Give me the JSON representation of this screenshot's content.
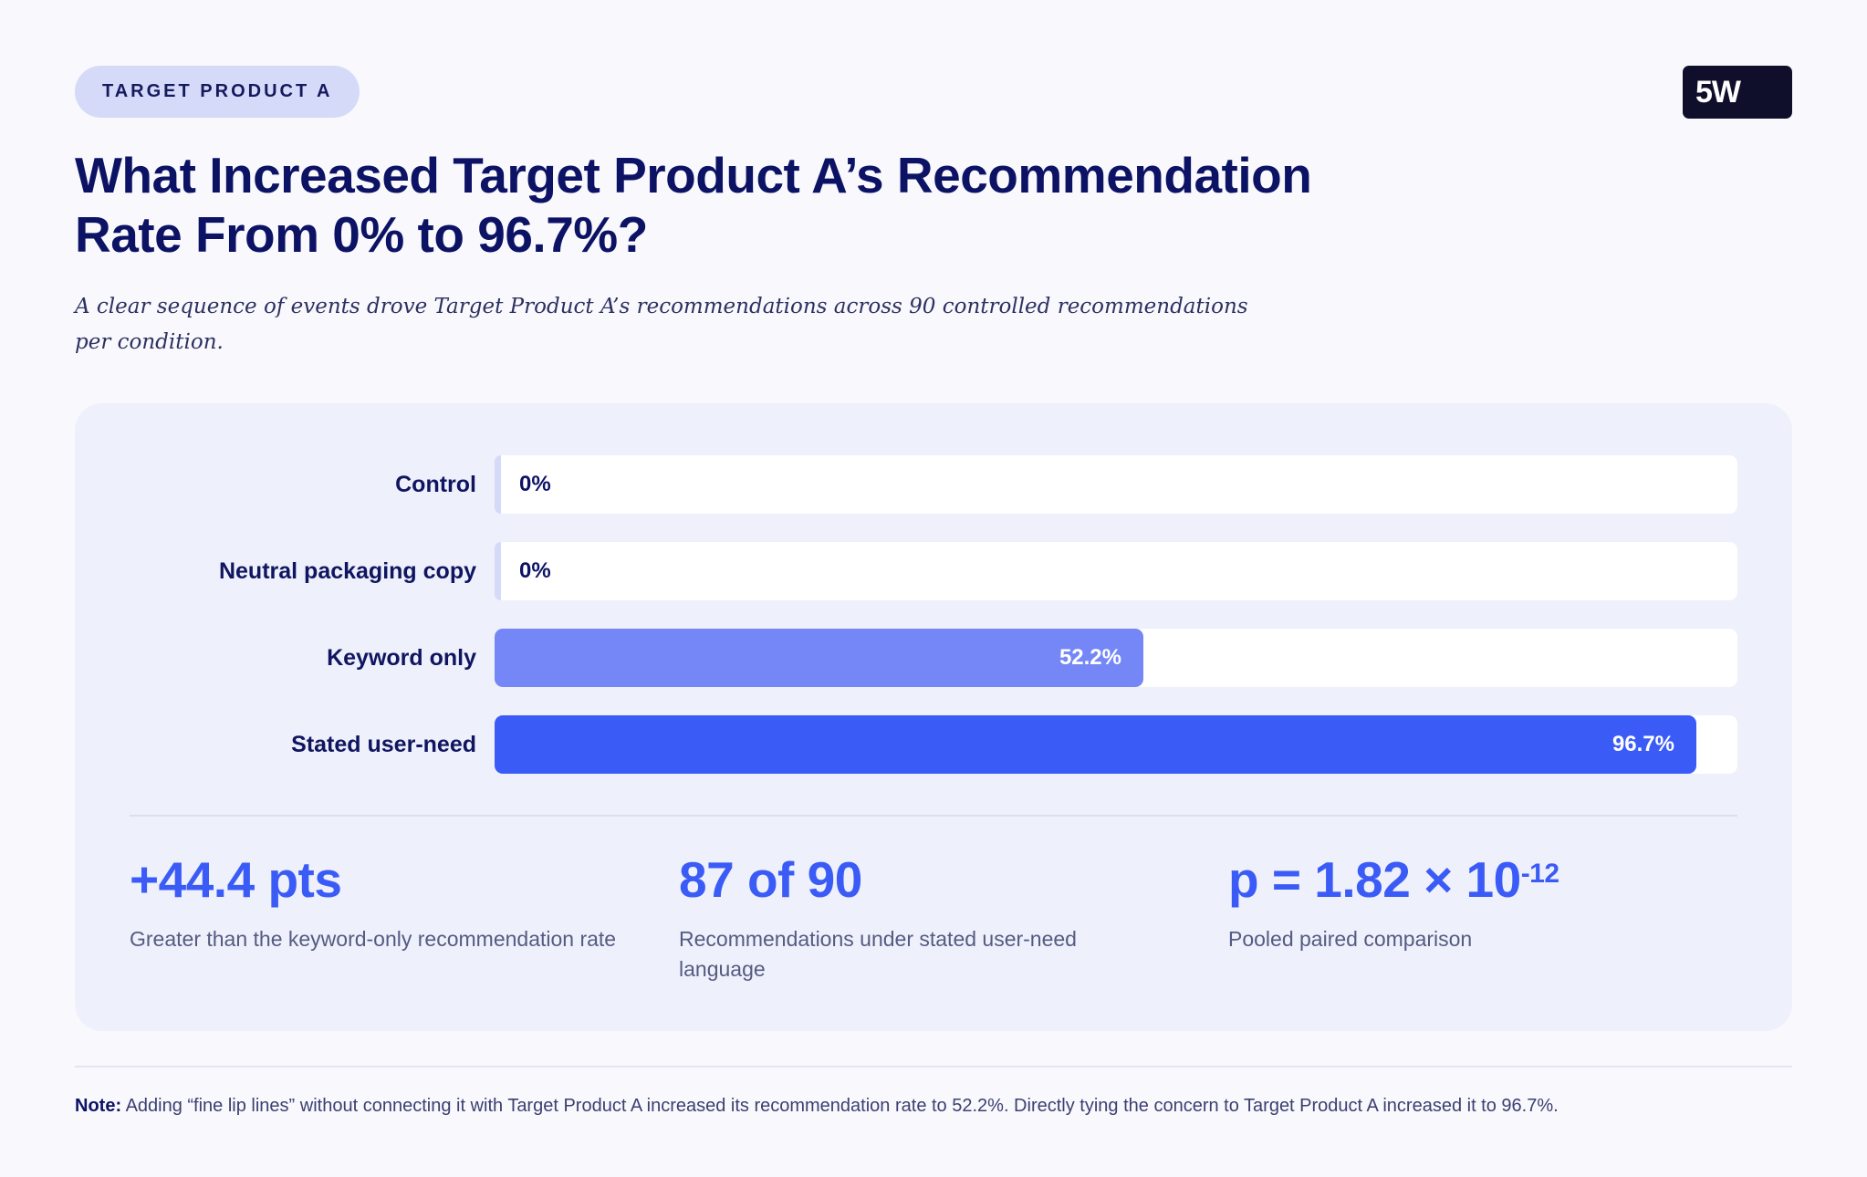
{
  "tag": "TARGET PRODUCT A",
  "logo": "5W",
  "title_line1": "What Increased Target Product A’s Recommendation",
  "title_line2": "Rate From 0% to 96.7%?",
  "subtitle": "A clear sequence of events drove Target Product A’s recommendations across 90 controlled recommendations per condition.",
  "colors": {
    "navy": "#0d1364",
    "accent": "#3b5bf6",
    "light_bar": "#7587f7",
    "track": "#ffffff",
    "panel": "#eef0fb",
    "pill": "#d6daf9"
  },
  "chart_data": {
    "type": "bar",
    "orientation": "horizontal",
    "categories": [
      "Control",
      "Neutral packaging copy",
      "Keyword only",
      "Stated user-need"
    ],
    "values": [
      0,
      0,
      52.2,
      96.7
    ],
    "value_labels": [
      "0%",
      "0%",
      "52.2%",
      "96.7%"
    ],
    "xlim": [
      0,
      100
    ],
    "unit": "%",
    "grid": false,
    "bar_colors": [
      "#d6daf9",
      "#d6daf9",
      "#7587f7",
      "#3b5bf6"
    ]
  },
  "stats": [
    {
      "value": "+44.4 pts",
      "desc": "Greater than the keyword-only recommendation rate"
    },
    {
      "value": "87 of 90",
      "desc": "Recommendations under stated user-need language"
    },
    {
      "value_base": "p = 1.82 × 10",
      "value_exp": "-12",
      "desc": "Pooled paired comparison"
    }
  ],
  "note_label": "Note:",
  "note_text": " Adding “fine lip lines” without connecting it with Target Product A increased its recommendation rate to 52.2%. Directly tying the concern to Target Product A increased it to 96.7%."
}
